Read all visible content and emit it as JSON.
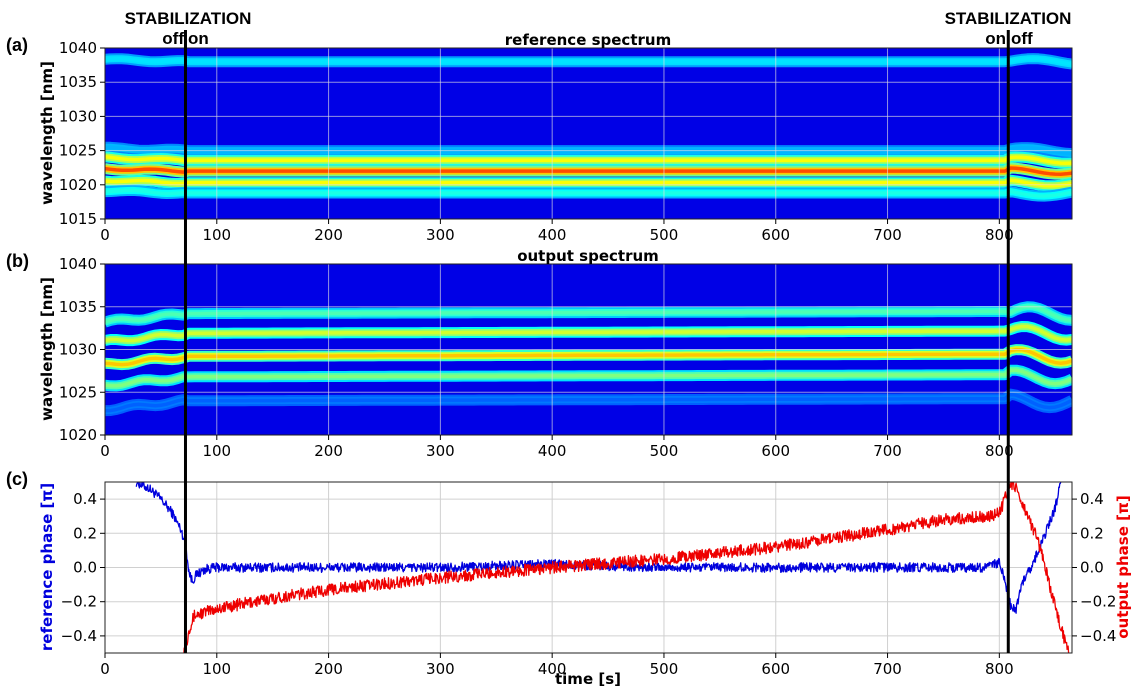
{
  "annotations": {
    "stab_left": {
      "title": "STABILIZATION",
      "a": "off",
      "b": "on",
      "t": 72
    },
    "stab_right": {
      "title": "STABILIZATION",
      "a": "on",
      "b": "off",
      "t": 808
    }
  },
  "chart_data": [
    {
      "panel": "(a)",
      "type": "heatmap",
      "title": "reference spectrum",
      "xlabel": "",
      "ylabel": "wavelength [nm]",
      "xlim": [
        0,
        865
      ],
      "ylim": [
        1015,
        1040
      ],
      "xticks": [
        0,
        100,
        200,
        300,
        400,
        500,
        600,
        700,
        800
      ],
      "yticks": [
        1015,
        1020,
        1025,
        1030,
        1035,
        1040
      ],
      "colormap": "jet",
      "grid": true,
      "bands": [
        {
          "wavelength": 1038.0,
          "level": 0.35
        },
        {
          "wavelength": 1025.0,
          "level": 0.3
        },
        {
          "wavelength": 1023.6,
          "level": 0.62
        },
        {
          "wavelength": 1022.0,
          "level": 0.8
        },
        {
          "wavelength": 1020.3,
          "level": 0.62
        },
        {
          "wavelength": 1018.8,
          "level": 0.4
        }
      ]
    },
    {
      "panel": "(b)",
      "type": "heatmap",
      "title": "output spectrum",
      "xlabel": "",
      "ylabel": "wavelength [nm]",
      "xlim": [
        0,
        865
      ],
      "ylim": [
        1020,
        1040
      ],
      "xticks": [
        0,
        100,
        200,
        300,
        400,
        500,
        600,
        700,
        800
      ],
      "yticks": [
        1020,
        1025,
        1030,
        1035,
        1040
      ],
      "colormap": "jet",
      "grid": true,
      "bands": [
        {
          "wavelength": 1034.2,
          "level": 0.45
        },
        {
          "wavelength": 1031.9,
          "level": 0.58
        },
        {
          "wavelength": 1029.2,
          "level": 0.68
        },
        {
          "wavelength": 1026.8,
          "level": 0.5
        },
        {
          "wavelength": 1024.0,
          "level": 0.22
        }
      ]
    },
    {
      "panel": "(c)",
      "type": "line",
      "title": "",
      "xlabel": "time [s]",
      "ylabel": "reference phase [π]",
      "ylabel_right": "output phase [π]",
      "xlim": [
        0,
        865
      ],
      "ylim": [
        -0.5,
        0.5
      ],
      "xticks": [
        0,
        100,
        200,
        300,
        400,
        500,
        600,
        700,
        800
      ],
      "yticks": [
        -0.4,
        -0.2,
        0.0,
        0.2,
        0.4
      ],
      "ytick_labels": [
        "−0.4",
        "−0.2",
        "0.0",
        "0.2",
        "0.4"
      ],
      "grid": true,
      "series": [
        {
          "axis": "left",
          "color": "#0000dd",
          "x": [
            28,
            40,
            50,
            60,
            68,
            72,
            75,
            78,
            82,
            90,
            100,
            200,
            300,
            400,
            500,
            600,
            700,
            780,
            790,
            800,
            805,
            810,
            815,
            820,
            830,
            840,
            850,
            855
          ],
          "y": [
            0.5,
            0.46,
            0.4,
            0.32,
            0.22,
            0.14,
            -0.02,
            -0.08,
            -0.04,
            -0.01,
            0.0,
            0.0,
            0.0,
            0.02,
            0.0,
            0.0,
            0.0,
            0.0,
            0.0,
            0.03,
            -0.08,
            -0.22,
            -0.24,
            -0.1,
            0.02,
            0.18,
            0.35,
            0.5
          ]
        },
        {
          "axis": "right",
          "color": "#ee0000",
          "x": [
            70,
            73,
            75,
            80,
            100,
            150,
            200,
            300,
            400,
            500,
            600,
            700,
            750,
            790,
            800,
            805,
            810,
            815,
            825,
            835,
            845,
            855,
            862
          ],
          "y": [
            -0.5,
            -0.45,
            -0.36,
            -0.28,
            -0.24,
            -0.18,
            -0.13,
            -0.06,
            0.0,
            0.05,
            0.12,
            0.22,
            0.28,
            0.3,
            0.32,
            0.4,
            0.5,
            0.46,
            0.3,
            0.15,
            -0.1,
            -0.35,
            -0.5
          ]
        }
      ]
    }
  ]
}
